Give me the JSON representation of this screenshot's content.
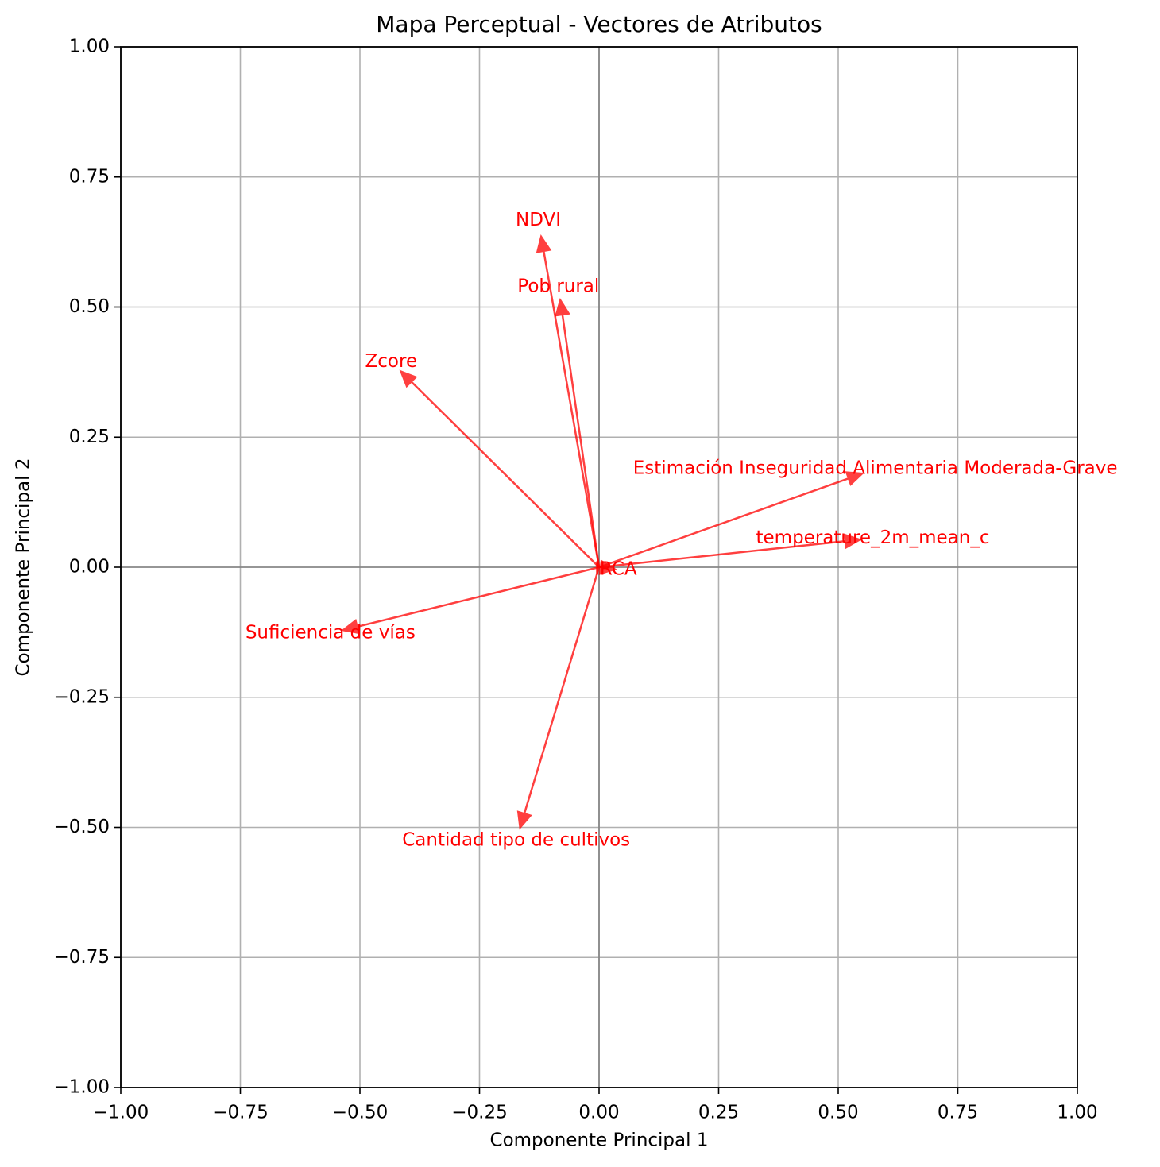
{
  "chart_data": {
    "type": "vector",
    "title": "Mapa Perceptual - Vectores de Atributos",
    "xlabel": "Componente Principal 1",
    "ylabel": "Componente Principal 2",
    "labels": [
      "NDVI",
      "Pob rural",
      "Zcore",
      "Estimación Inseguridad Alimentaria Moderada-Grave",
      "temperature_2m_mean_c",
      "IRCA",
      "Suficiencia de vías",
      "Cantidad tipo de cultivos"
    ],
    "x": [
      -0.121,
      -0.081,
      -0.414,
      0.55,
      0.545,
      0.033,
      -0.535,
      -0.165
    ],
    "y": [
      0.635,
      0.513,
      0.376,
      0.18,
      0.053,
      -0.004,
      -0.121,
      -0.5
    ],
    "color": "#ff0000",
    "xlim": [
      -1,
      1
    ],
    "ylim": [
      -1,
      1
    ],
    "xticks": [
      {
        "value": -1,
        "label": "−1.00"
      },
      {
        "value": -0.75,
        "label": "−0.75"
      },
      {
        "value": -0.5,
        "label": "−0.50"
      },
      {
        "value": -0.25,
        "label": "−0.25"
      },
      {
        "value": 0,
        "label": "0.00"
      },
      {
        "value": 0.25,
        "label": "0.25"
      },
      {
        "value": 0.5,
        "label": "0.50"
      },
      {
        "value": 0.75,
        "label": "0.75"
      },
      {
        "value": 1,
        "label": "1.00"
      }
    ],
    "yticks": [
      {
        "value": -1,
        "label": "−1.00"
      },
      {
        "value": -0.75,
        "label": "−0.75"
      },
      {
        "value": -0.5,
        "label": "−0.50"
      },
      {
        "value": -0.25,
        "label": "−0.25"
      },
      {
        "value": 0,
        "label": "0.00"
      },
      {
        "value": 0.25,
        "label": "0.25"
      },
      {
        "value": 0.5,
        "label": "0.50"
      },
      {
        "value": 0.75,
        "label": "0.75"
      },
      {
        "value": 1,
        "label": "1.00"
      }
    ],
    "grid": true,
    "zero_lines": true
  }
}
